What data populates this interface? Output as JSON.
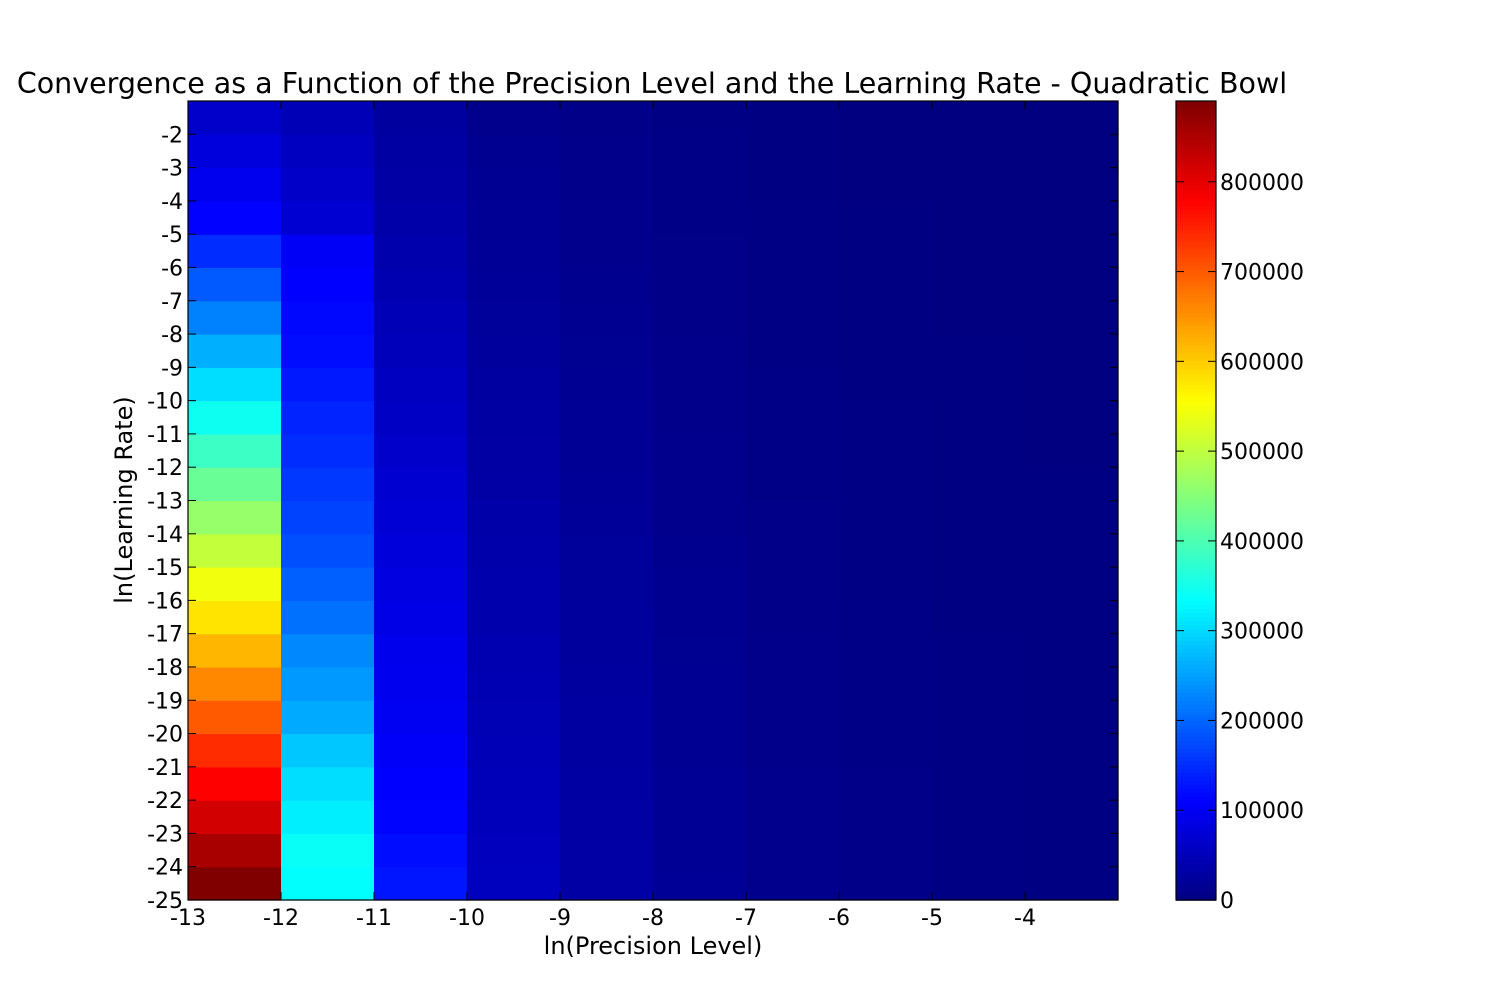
{
  "chart_data": {
    "type": "heatmap",
    "title": "Convergence as a Function of the Precision Level and the Learning Rate - Quadratic Bowl",
    "xlabel": "ln(Precision Level)",
    "ylabel": "ln(Learning Rate)",
    "x_columns": [
      -13,
      -12,
      -11,
      -10,
      -9,
      -8,
      -7,
      -6,
      -5,
      -4
    ],
    "x_tick_labels": [
      "-13",
      "-12",
      "-11",
      "-10",
      "-9",
      "-8",
      "-7",
      "-6",
      "-5",
      "-4"
    ],
    "xlim": [
      -13,
      -3
    ],
    "y_rows": [
      -25,
      -24,
      -23,
      -22,
      -21,
      -20,
      -19,
      -18,
      -17,
      -16,
      -15,
      -14,
      -13,
      -12,
      -11,
      -10,
      -9,
      -8,
      -7,
      -6,
      -5,
      -4,
      -3,
      -2
    ],
    "y_tick_labels": [
      "-25",
      "-24",
      "-23",
      "-22",
      "-21",
      "-20",
      "-19",
      "-18",
      "-17",
      "-16",
      "-15",
      "-14",
      "-13",
      "-12",
      "-11",
      "-10",
      "-9",
      "-8",
      "-7",
      "-6",
      "-5",
      "-4",
      "-3",
      "-2"
    ],
    "ylim": [
      -25,
      -1
    ],
    "y_inverted": true,
    "colormap": "jet",
    "colorbar": {
      "range": [
        0,
        890000
      ],
      "ticks": [
        0,
        100000,
        200000,
        300000,
        400000,
        500000,
        600000,
        700000,
        800000
      ],
      "tick_labels": [
        "0",
        "100000",
        "200000",
        "300000",
        "400000",
        "500000",
        "600000",
        "700000",
        "800000"
      ]
    },
    "values": [
      [
        890000,
        335000,
        130000,
        55000,
        33000,
        20000,
        12000,
        8000,
        5000,
        3000
      ],
      [
        855000,
        340000,
        122000,
        54000,
        32000,
        19000,
        11500,
        7700,
        4800,
        2900
      ],
      [
        818000,
        320000,
        115000,
        52000,
        31000,
        18500,
        11000,
        7400,
        4600,
        2800
      ],
      [
        780000,
        305000,
        110000,
        50000,
        30000,
        18000,
        10500,
        7000,
        4400,
        2700
      ],
      [
        740000,
        285000,
        105000,
        48000,
        29000,
        17000,
        10000,
        6700,
        4200,
        2600
      ],
      [
        700000,
        260000,
        101000,
        46000,
        28000,
        16500,
        9600,
        6400,
        4000,
        2500
      ],
      [
        660000,
        245000,
        97000,
        44000,
        27000,
        16000,
        9200,
        6100,
        3800,
        2400
      ],
      [
        620000,
        230000,
        95000,
        42000,
        26000,
        15000,
        8800,
        5800,
        3600,
        2300
      ],
      [
        580000,
        210000,
        90000,
        40000,
        25000,
        14500,
        8400,
        5500,
        3400,
        2200
      ],
      [
        545000,
        195000,
        85000,
        39000,
        24000,
        14000,
        8000,
        5200,
        3200,
        2100
      ],
      [
        505000,
        180000,
        80000,
        37000,
        23000,
        13000,
        7600,
        4900,
        3000,
        2000
      ],
      [
        465000,
        170000,
        74000,
        35000,
        21000,
        12000,
        7200,
        4600,
        2800,
        1900
      ],
      [
        425000,
        160000,
        70000,
        33000,
        20000,
        11500,
        6800,
        4300,
        2600,
        1800
      ],
      [
        385000,
        150000,
        66000,
        31000,
        19000,
        11000,
        6400,
        4000,
        2400,
        1700
      ],
      [
        345000,
        142000,
        60000,
        30000,
        18000,
        10000,
        6000,
        3700,
        2200,
        1600
      ],
      [
        305000,
        132000,
        56000,
        28000,
        17000,
        9500,
        5600,
        3400,
        2000,
        1500
      ],
      [
        265000,
        122000,
        52000,
        26000,
        15000,
        9000,
        5200,
        3100,
        1800,
        1400
      ],
      [
        225000,
        117000,
        48000,
        24000,
        14000,
        8000,
        4800,
        2800,
        1600,
        1300
      ],
      [
        190000,
        110000,
        43000,
        22000,
        13000,
        7500,
        4400,
        2500,
        1400,
        1200
      ],
      [
        150000,
        103000,
        40000,
        20000,
        12000,
        7000,
        4000,
        2200,
        1200,
        1100
      ],
      [
        112000,
        72000,
        36000,
        18000,
        11000,
        6500,
        3600,
        1900,
        1000,
        1000
      ],
      [
        96000,
        64000,
        33000,
        16000,
        10000,
        6000,
        3200,
        1600,
        900,
        900
      ],
      [
        82000,
        56000,
        30000,
        14000,
        9000,
        5500,
        2800,
        1300,
        800,
        800
      ],
      [
        66000,
        48000,
        27000,
        12000,
        8000,
        5000,
        2400,
        1000,
        700,
        700
      ]
    ]
  }
}
